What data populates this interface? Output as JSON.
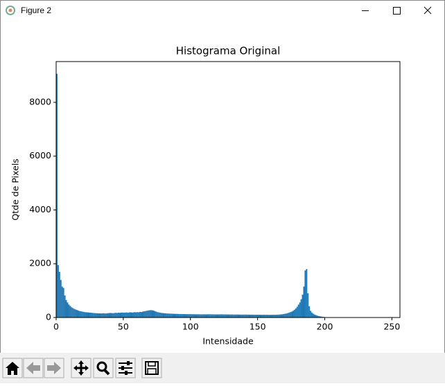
{
  "window": {
    "title": "Figure 2"
  },
  "chart_data": {
    "type": "histogram",
    "title": "Histograma Original",
    "x_label": "Intensidade",
    "y_label": "Qtde de Pixels",
    "color": "#1f77b4",
    "bins": [
      0,
      1,
      2,
      3,
      4,
      5,
      6,
      7,
      8,
      9,
      10,
      11,
      12,
      13,
      14,
      15,
      16,
      17,
      18,
      19,
      20,
      21,
      22,
      23,
      24,
      25,
      26,
      27,
      28,
      29,
      30,
      31,
      32,
      33,
      34,
      35,
      36,
      37,
      38,
      39,
      40,
      41,
      42,
      43,
      44,
      45,
      46,
      47,
      48,
      49,
      50,
      51,
      52,
      53,
      54,
      55,
      56,
      57,
      58,
      59,
      60,
      61,
      62,
      63,
      64,
      65,
      66,
      67,
      68,
      69,
      70,
      71,
      72,
      73,
      74,
      75,
      76,
      77,
      78,
      79,
      80,
      81,
      82,
      83,
      84,
      85,
      86,
      87,
      88,
      89,
      90,
      91,
      92,
      93,
      94,
      95,
      96,
      97,
      98,
      99,
      100,
      101,
      102,
      103,
      104,
      105,
      106,
      107,
      108,
      109,
      110,
      111,
      112,
      113,
      114,
      115,
      116,
      117,
      118,
      119,
      120,
      121,
      122,
      123,
      124,
      125,
      126,
      127,
      128,
      129,
      130,
      131,
      132,
      133,
      134,
      135,
      136,
      137,
      138,
      139,
      140,
      141,
      142,
      143,
      144,
      145,
      146,
      147,
      148,
      149,
      150,
      151,
      152,
      153,
      154,
      155,
      156,
      157,
      158,
      159,
      160,
      161,
      162,
      163,
      164,
      165,
      166,
      167,
      168,
      169,
      170,
      171,
      172,
      173,
      174,
      175,
      176,
      177,
      178,
      179,
      180,
      181,
      182,
      183,
      184,
      185,
      186,
      187,
      188,
      189,
      190,
      191,
      192,
      193,
      194,
      195,
      196,
      197,
      198,
      199,
      200,
      201,
      202,
      203,
      204,
      205,
      206,
      207,
      208,
      209,
      210,
      211,
      212,
      213,
      214,
      215,
      216,
      217,
      218,
      219,
      220,
      221,
      222,
      223,
      224,
      225,
      226,
      227,
      228,
      229,
      230,
      231,
      232,
      233,
      234,
      235,
      236,
      237,
      238,
      239,
      240,
      241,
      242,
      243,
      244,
      245,
      246,
      247,
      248,
      249,
      250,
      251,
      252,
      253,
      254,
      255,
      256
    ],
    "values": [
      9064,
      1950,
      1700,
      1400,
      1150,
      1100,
      820,
      650,
      560,
      480,
      430,
      380,
      350,
      320,
      300,
      280,
      260,
      240,
      230,
      220,
      210,
      200,
      195,
      190,
      185,
      180,
      175,
      170,
      165,
      160,
      160,
      155,
      155,
      150,
      155,
      160,
      150,
      155,
      160,
      165,
      170,
      165,
      160,
      170,
      175,
      170,
      180,
      175,
      180,
      185,
      180,
      185,
      190,
      180,
      190,
      195,
      185,
      190,
      200,
      195,
      200,
      195,
      210,
      205,
      220,
      230,
      240,
      250,
      260,
      270,
      275,
      270,
      260,
      240,
      220,
      200,
      190,
      180,
      170,
      165,
      160,
      155,
      150,
      150,
      145,
      145,
      140,
      140,
      135,
      135,
      135,
      130,
      130,
      130,
      128,
      128,
      125,
      125,
      125,
      125,
      125,
      122,
      122,
      120,
      120,
      120,
      120,
      118,
      118,
      118,
      120,
      118,
      118,
      120,
      120,
      118,
      118,
      116,
      116,
      116,
      115,
      115,
      118,
      118,
      115,
      115,
      114,
      114,
      114,
      112,
      112,
      112,
      110,
      110,
      112,
      110,
      110,
      108,
      108,
      108,
      110,
      110,
      108,
      108,
      106,
      106,
      106,
      104,
      104,
      104,
      104,
      104,
      102,
      102,
      104,
      104,
      102,
      102,
      100,
      100,
      100,
      102,
      102,
      104,
      106,
      108,
      110,
      115,
      120,
      130,
      140,
      150,
      165,
      180,
      200,
      220,
      250,
      290,
      340,
      400,
      480,
      560,
      680,
      850,
      1150,
      1750,
      1800,
      900,
      420,
      250,
      180,
      140,
      110,
      90,
      70,
      55,
      45,
      35,
      25,
      18,
      12,
      8,
      5,
      3,
      2,
      1,
      1,
      0,
      0,
      0,
      0,
      0,
      0,
      0,
      0,
      0,
      0,
      0,
      0,
      0,
      0,
      0,
      0,
      0,
      0,
      0,
      0,
      0,
      0,
      0,
      0,
      0,
      0,
      0,
      0,
      0,
      0,
      0,
      0,
      0,
      0,
      0,
      0,
      0,
      0,
      0,
      0,
      0,
      0,
      0,
      0,
      0,
      0,
      0,
      0,
      0
    ],
    "xlim": [
      0,
      256
    ],
    "ylim": [
      0,
      9517
    ],
    "xticks": [
      0,
      50,
      100,
      150,
      200,
      250
    ],
    "yticks": [
      0,
      2000,
      4000,
      6000,
      8000
    ]
  }
}
